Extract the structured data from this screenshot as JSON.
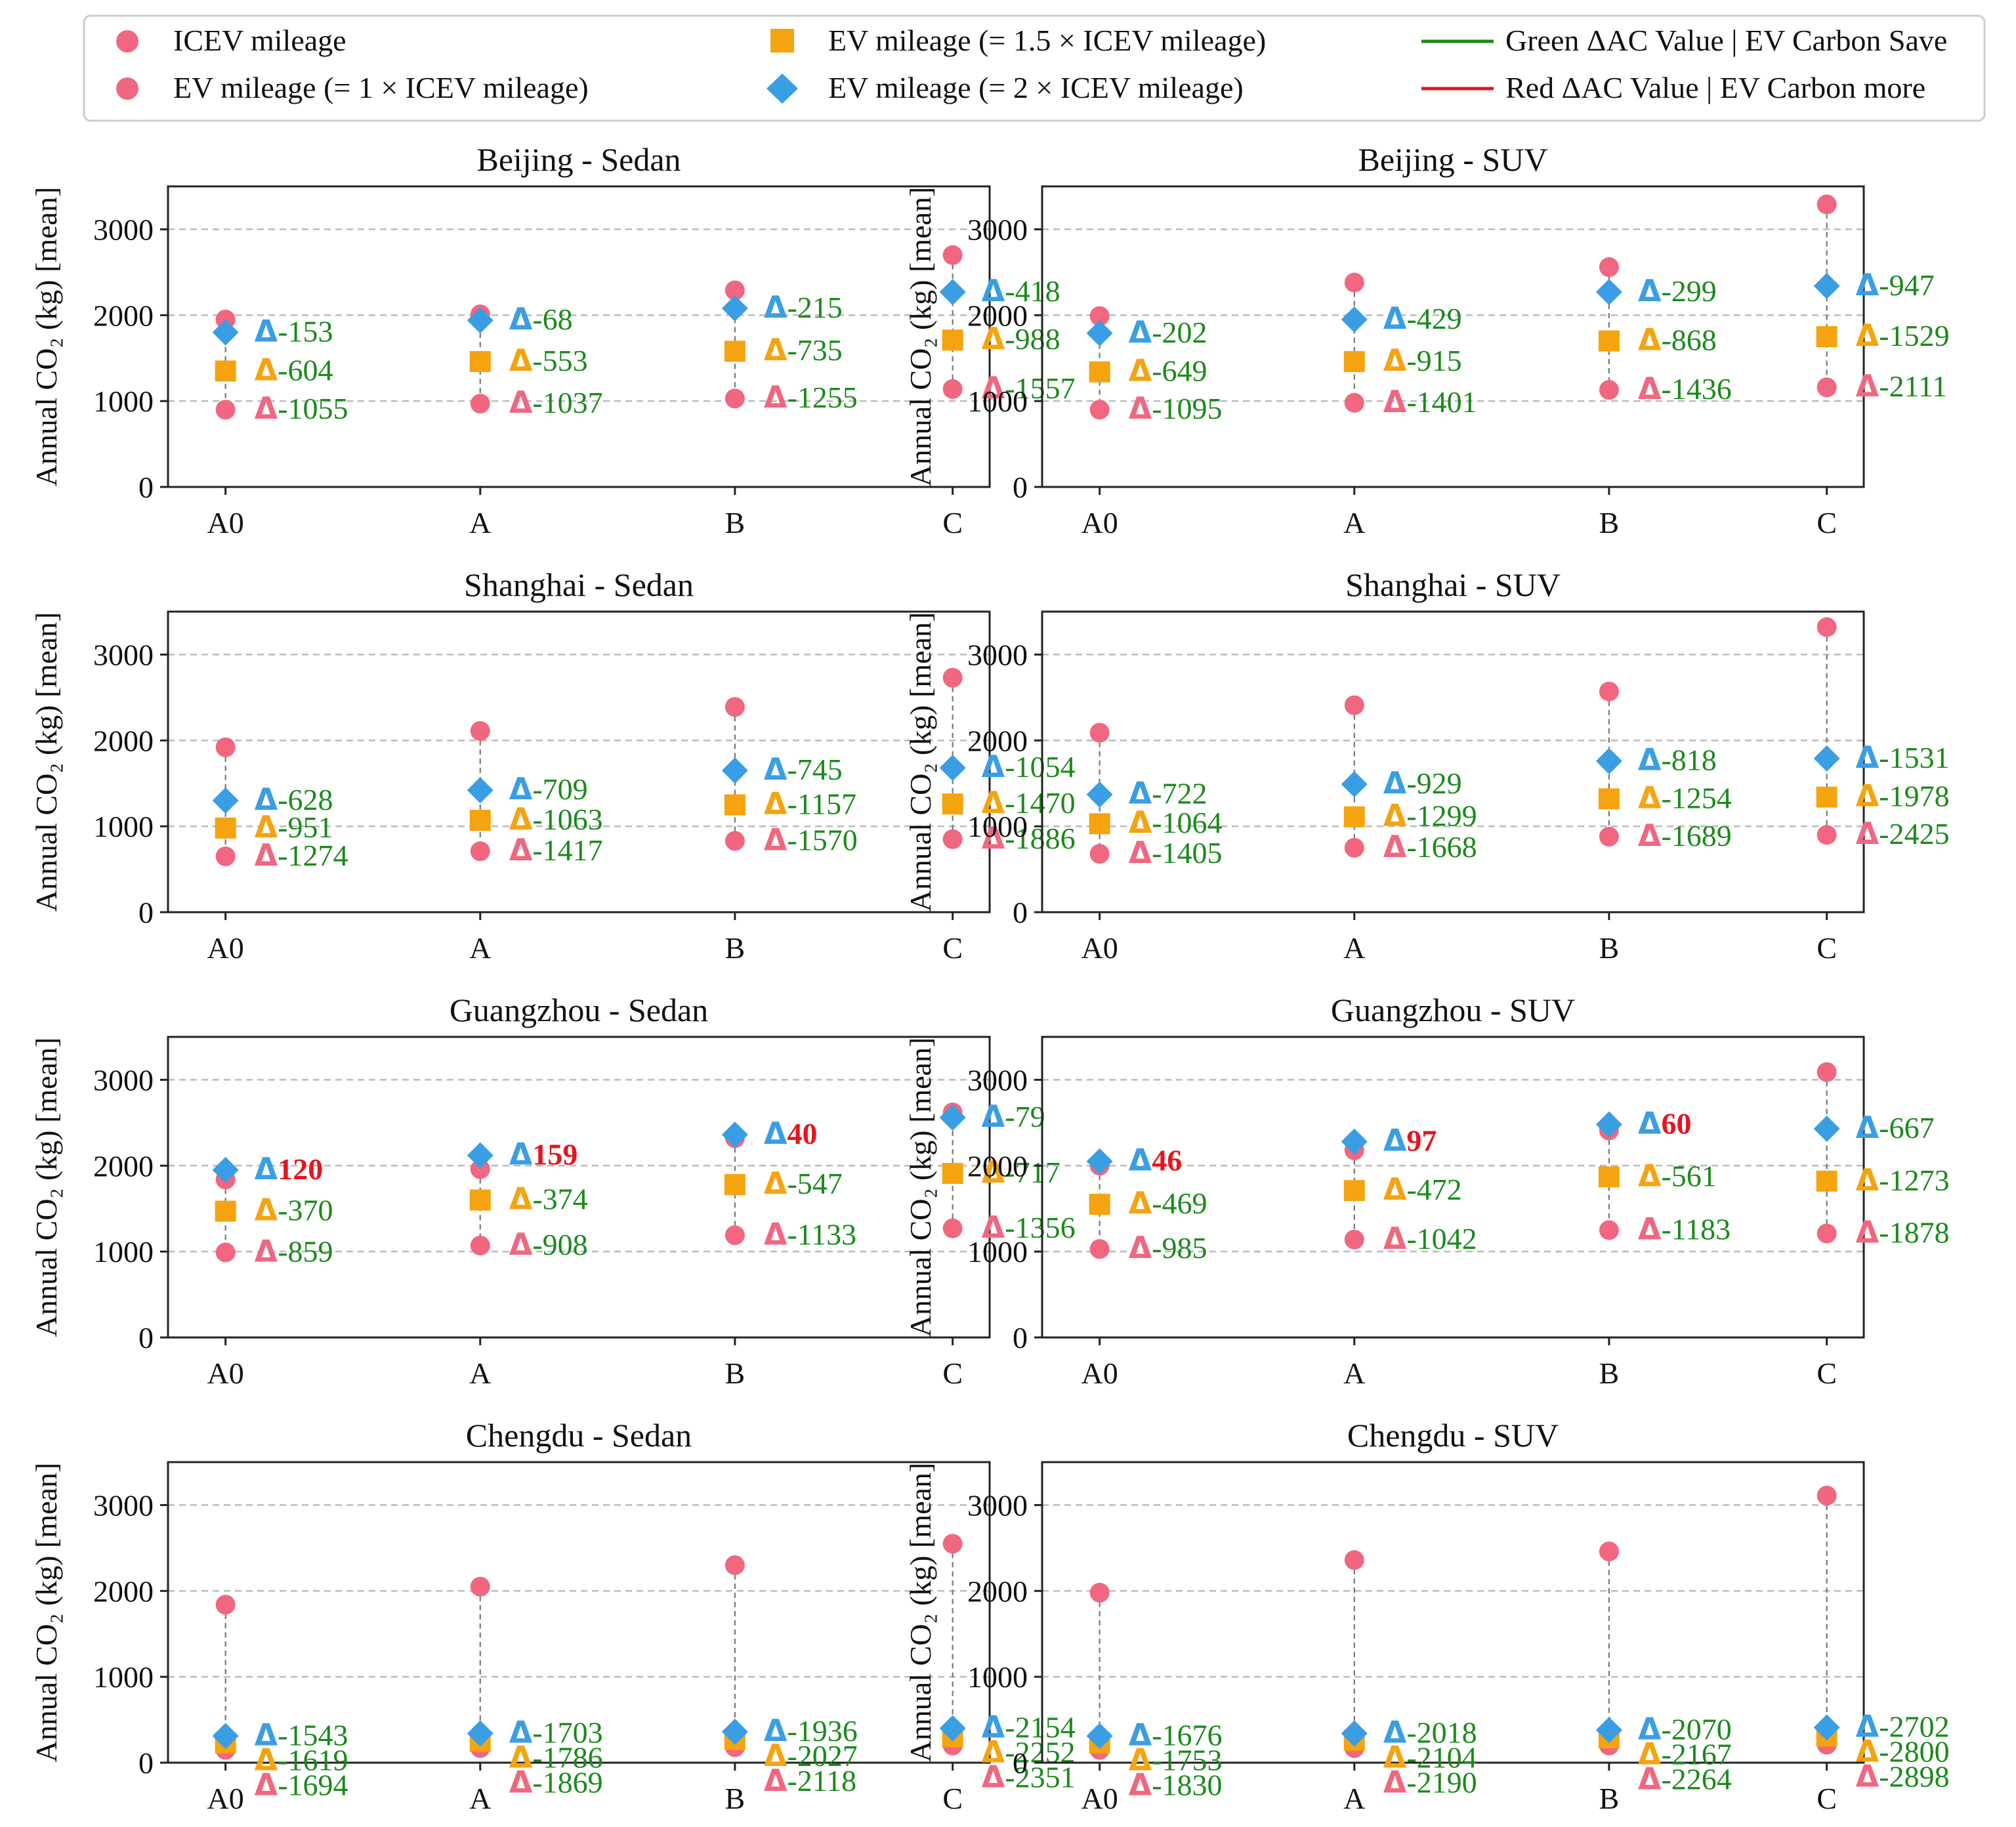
{
  "legend": {
    "items": [
      {
        "label": "ICEV mileage",
        "marker": "circle",
        "color": "#F0677F"
      },
      {
        "label": "EV mileage (= 1 × ICEV mileage)",
        "marker": "circle",
        "color": "#F0677F"
      },
      {
        "label": "EV mileage (= 1.5 × ICEV mileage)",
        "marker": "square",
        "color": "#F5A30F"
      },
      {
        "label": "EV mileage (= 2 × ICEV mileage)",
        "marker": "diamond",
        "color": "#3A9EE4"
      },
      {
        "label": "Green ΔAC Value | EV Carbon Save",
        "marker": "line",
        "color": "#1A8A1A"
      },
      {
        "label": "Red ΔAC Value | EV Carbon more",
        "marker": "line",
        "color": "#E8141C"
      }
    ]
  },
  "colors": {
    "icev": "#F0677F",
    "ev1": "#F0677F",
    "ev15": "#F5A30F",
    "ev2": "#3A9EE4",
    "save": "#1A8A1A",
    "more": "#E8141C",
    "grid": "#BBBBBB"
  },
  "delta_symbol": "Δ",
  "chart_data": [
    {
      "type": "scatter",
      "title": "Beijing - Sedan",
      "xlabel": "",
      "ylabel": "Annual CO₂ (kg) [mean]",
      "categories": [
        "A0",
        "A",
        "B",
        "C"
      ],
      "ylim": [
        0,
        3500
      ],
      "yticks": [
        0,
        1000,
        2000,
        3000
      ],
      "grid": "y-dashed",
      "series": [
        {
          "name": "ICEV mileage",
          "values": [
            1950,
            2010,
            2290,
            2700
          ]
        },
        {
          "name": "EV mileage (= 1 × ICEV mileage)",
          "values": [
            900,
            970,
            1030,
            1140
          ]
        },
        {
          "name": "EV mileage (= 1.5 × ICEV mileage)",
          "values": [
            1350,
            1460,
            1580,
            1710
          ]
        },
        {
          "name": "EV mileage (= 2 × ICEV mileage)",
          "values": [
            1800,
            1940,
            2080,
            2270
          ]
        }
      ],
      "delta_labels": [
        {
          "series": "ev2",
          "values": [
            "-153",
            "-68",
            "-215",
            "-418"
          ]
        },
        {
          "series": "ev15",
          "values": [
            "-604",
            "-553",
            "-735",
            "-988"
          ]
        },
        {
          "series": "ev1",
          "values": [
            "-1055",
            "-1037",
            "-1255",
            "-1557"
          ]
        }
      ]
    },
    {
      "type": "scatter",
      "title": "Beijing - SUV",
      "xlabel": "",
      "ylabel": "Annual CO₂ (kg) [mean]",
      "categories": [
        "A0",
        "A",
        "B",
        "C"
      ],
      "ylim": [
        0,
        3500
      ],
      "yticks": [
        0,
        1000,
        2000,
        3000
      ],
      "grid": "y-dashed",
      "series": [
        {
          "name": "ICEV mileage",
          "values": [
            1990,
            2380,
            2560,
            3290
          ]
        },
        {
          "name": "EV mileage (= 1 × ICEV mileage)",
          "values": [
            900,
            980,
            1130,
            1160
          ]
        },
        {
          "name": "EV mileage (= 1.5 × ICEV mileage)",
          "values": [
            1340,
            1460,
            1700,
            1750
          ]
        },
        {
          "name": "EV mileage (= 2 × ICEV mileage)",
          "values": [
            1790,
            1950,
            2270,
            2340
          ]
        }
      ],
      "delta_labels": [
        {
          "series": "ev2",
          "values": [
            "-202",
            "-429",
            "-299",
            "-947"
          ]
        },
        {
          "series": "ev15",
          "values": [
            "-649",
            "-915",
            "-868",
            "-1529"
          ]
        },
        {
          "series": "ev1",
          "values": [
            "-1095",
            "-1401",
            "-1436",
            "-2111"
          ]
        }
      ]
    },
    {
      "type": "scatter",
      "title": "Shanghai - Sedan",
      "xlabel": "",
      "ylabel": "Annual CO₂ (kg) [mean]",
      "categories": [
        "A0",
        "A",
        "B",
        "C"
      ],
      "ylim": [
        0,
        3500
      ],
      "yticks": [
        0,
        1000,
        2000,
        3000
      ],
      "grid": "y-dashed",
      "series": [
        {
          "name": "ICEV mileage",
          "values": [
            1920,
            2110,
            2390,
            2730
          ]
        },
        {
          "name": "EV mileage (= 1 × ICEV mileage)",
          "values": [
            650,
            710,
            830,
            850
          ]
        },
        {
          "name": "EV mileage (= 1.5 × ICEV mileage)",
          "values": [
            980,
            1070,
            1250,
            1260
          ]
        },
        {
          "name": "EV mileage (= 2 × ICEV mileage)",
          "values": [
            1300,
            1420,
            1650,
            1680
          ]
        }
      ],
      "delta_labels": [
        {
          "series": "ev2",
          "values": [
            "-628",
            "-709",
            "-745",
            "-1054"
          ]
        },
        {
          "series": "ev15",
          "values": [
            "-951",
            "-1063",
            "-1157",
            "-1470"
          ]
        },
        {
          "series": "ev1",
          "values": [
            "-1274",
            "-1417",
            "-1570",
            "-1886"
          ]
        }
      ]
    },
    {
      "type": "scatter",
      "title": "Shanghai - SUV",
      "xlabel": "",
      "ylabel": "Annual CO₂ (kg) [mean]",
      "categories": [
        "A0",
        "A",
        "B",
        "C"
      ],
      "ylim": [
        0,
        3500
      ],
      "yticks": [
        0,
        1000,
        2000,
        3000
      ],
      "grid": "y-dashed",
      "series": [
        {
          "name": "ICEV mileage",
          "values": [
            2090,
            2410,
            2570,
            3320
          ]
        },
        {
          "name": "EV mileage (= 1 × ICEV mileage)",
          "values": [
            680,
            750,
            880,
            900
          ]
        },
        {
          "name": "EV mileage (= 1.5 × ICEV mileage)",
          "values": [
            1030,
            1110,
            1320,
            1340
          ]
        },
        {
          "name": "EV mileage (= 2 × ICEV mileage)",
          "values": [
            1370,
            1490,
            1760,
            1790
          ]
        }
      ],
      "delta_labels": [
        {
          "series": "ev2",
          "values": [
            "-722",
            "-929",
            "-818",
            "-1531"
          ]
        },
        {
          "series": "ev15",
          "values": [
            "-1064",
            "-1299",
            "-1254",
            "-1978"
          ]
        },
        {
          "series": "ev1",
          "values": [
            "-1405",
            "-1668",
            "-1689",
            "-2425"
          ]
        }
      ]
    },
    {
      "type": "scatter",
      "title": "Guangzhou - Sedan",
      "xlabel": "",
      "ylabel": "Annual CO₂ (kg) [mean]",
      "categories": [
        "A0",
        "A",
        "B",
        "C"
      ],
      "ylim": [
        0,
        3500
      ],
      "yticks": [
        0,
        1000,
        2000,
        3000
      ],
      "grid": "y-dashed",
      "series": [
        {
          "name": "ICEV mileage",
          "values": [
            1840,
            1960,
            2320,
            2620
          ]
        },
        {
          "name": "EV mileage (= 1 × ICEV mileage)",
          "values": [
            990,
            1070,
            1190,
            1270
          ]
        },
        {
          "name": "EV mileage (= 1.5 × ICEV mileage)",
          "values": [
            1470,
            1600,
            1780,
            1910
          ]
        },
        {
          "name": "EV mileage (= 2 × ICEV mileage)",
          "values": [
            1950,
            2120,
            2360,
            2560
          ]
        }
      ],
      "delta_labels": [
        {
          "series": "ev2",
          "values": [
            "120",
            "159",
            "40",
            "-79"
          ]
        },
        {
          "series": "ev15",
          "values": [
            "-370",
            "-374",
            "-547",
            "-717"
          ]
        },
        {
          "series": "ev1",
          "values": [
            "-859",
            "-908",
            "-1133",
            "-1356"
          ]
        }
      ]
    },
    {
      "type": "scatter",
      "title": "Guangzhou - SUV",
      "xlabel": "",
      "ylabel": "Annual CO₂ (kg) [mean]",
      "categories": [
        "A0",
        "A",
        "B",
        "C"
      ],
      "ylim": [
        0,
        3500
      ],
      "yticks": [
        0,
        1000,
        2000,
        3000
      ],
      "grid": "y-dashed",
      "series": [
        {
          "name": "ICEV mileage",
          "values": [
            2000,
            2180,
            2410,
            3090
          ]
        },
        {
          "name": "EV mileage (= 1 × ICEV mileage)",
          "values": [
            1030,
            1140,
            1250,
            1210
          ]
        },
        {
          "name": "EV mileage (= 1.5 × ICEV mileage)",
          "values": [
            1550,
            1710,
            1870,
            1820
          ]
        },
        {
          "name": "EV mileage (= 2 × ICEV mileage)",
          "values": [
            2050,
            2280,
            2480,
            2430
          ]
        }
      ],
      "delta_labels": [
        {
          "series": "ev2",
          "values": [
            "46",
            "97",
            "60",
            "-667"
          ]
        },
        {
          "series": "ev15",
          "values": [
            "-469",
            "-472",
            "-561",
            "-1273"
          ]
        },
        {
          "series": "ev1",
          "values": [
            "-985",
            "-1042",
            "-1183",
            "-1878"
          ]
        }
      ]
    },
    {
      "type": "scatter",
      "title": "Chengdu - Sedan",
      "xlabel": "",
      "ylabel": "Annual CO₂ (kg) [mean]",
      "categories": [
        "A0",
        "A",
        "B",
        "C"
      ],
      "ylim": [
        0,
        3500
      ],
      "yticks": [
        0,
        1000,
        2000,
        3000
      ],
      "grid": "y-dashed",
      "series": [
        {
          "name": "ICEV mileage",
          "values": [
            1840,
            2050,
            2300,
            2550
          ]
        },
        {
          "name": "EV mileage (= 1 × ICEV mileage)",
          "values": [
            150,
            170,
            180,
            200
          ]
        },
        {
          "name": "EV mileage (= 1.5 × ICEV mileage)",
          "values": [
            230,
            250,
            270,
            300
          ]
        },
        {
          "name": "EV mileage (= 2 × ICEV mileage)",
          "values": [
            310,
            340,
            360,
            400
          ]
        }
      ],
      "delta_labels": [
        {
          "series": "ev2",
          "values": [
            "-1543",
            "-1703",
            "-1936",
            "-2154"
          ]
        },
        {
          "series": "ev15",
          "values": [
            "-1619",
            "-1786",
            "-2027",
            "-2252"
          ]
        },
        {
          "series": "ev1",
          "values": [
            "-1694",
            "-1869",
            "-2118",
            "-2351"
          ]
        }
      ]
    },
    {
      "type": "scatter",
      "title": "Chengdu - SUV",
      "xlabel": "",
      "ylabel": "Annual CO₂ (kg) [mean]",
      "categories": [
        "A0",
        "A",
        "B",
        "C"
      ],
      "ylim": [
        0,
        3500
      ],
      "yticks": [
        0,
        1000,
        2000,
        3000
      ],
      "grid": "y-dashed",
      "series": [
        {
          "name": "ICEV mileage",
          "values": [
            1980,
            2360,
            2460,
            3110
          ]
        },
        {
          "name": "EV mileage (= 1 × ICEV mileage)",
          "values": [
            150,
            170,
            200,
            210
          ]
        },
        {
          "name": "EV mileage (= 1.5 × ICEV mileage)",
          "values": [
            230,
            260,
            290,
            310
          ]
        },
        {
          "name": "EV mileage (= 2 × ICEV mileage)",
          "values": [
            310,
            340,
            380,
            410
          ]
        }
      ],
      "delta_labels": [
        {
          "series": "ev2",
          "values": [
            "-1676",
            "-2018",
            "-2070",
            "-2702"
          ]
        },
        {
          "series": "ev15",
          "values": [
            "-1753",
            "-2104",
            "-2167",
            "-2800"
          ]
        },
        {
          "series": "ev1",
          "values": [
            "-1830",
            "-2190",
            "-2264",
            "-2898"
          ]
        }
      ]
    }
  ]
}
